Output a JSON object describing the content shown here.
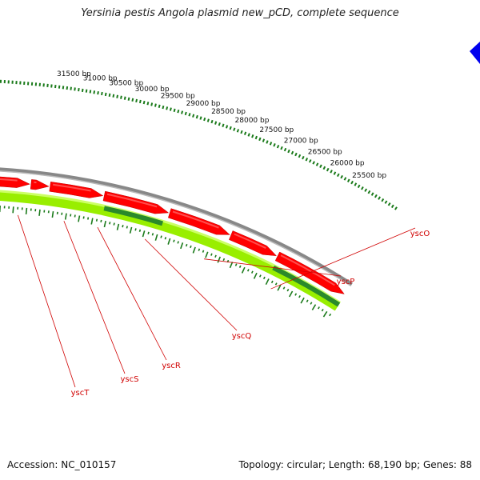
{
  "title": "Yersinia pestis Angola plasmid new_pCD, complete sequence",
  "footer": {
    "accession": "Accession: NC_010157",
    "summary": "Topology: circular; Length: 68,190 bp; Genes: 88"
  },
  "colors": {
    "background": "#ffffff",
    "backbone": "#888888",
    "gene_forward": "#ff0000",
    "gene_reverse": "#ff0000",
    "cds_light": "#99ee00",
    "cds_dark": "#2a8a2a",
    "tick": "#1a7a1a",
    "label": "#d00000",
    "marker": "#0000ee"
  },
  "tick_labels": [
    "25500 bp",
    "26000 bp",
    "26500 bp",
    "27000 bp",
    "27500 bp",
    "28000 bp",
    "28500 bp",
    "29000 bp",
    "29500 bp",
    "30000 bp",
    "30500 bp",
    "31000 bp",
    "31500 bp"
  ],
  "genes": [
    "yscO",
    "yscP",
    "yscQ",
    "yscR",
    "yscS",
    "yscT"
  ]
}
